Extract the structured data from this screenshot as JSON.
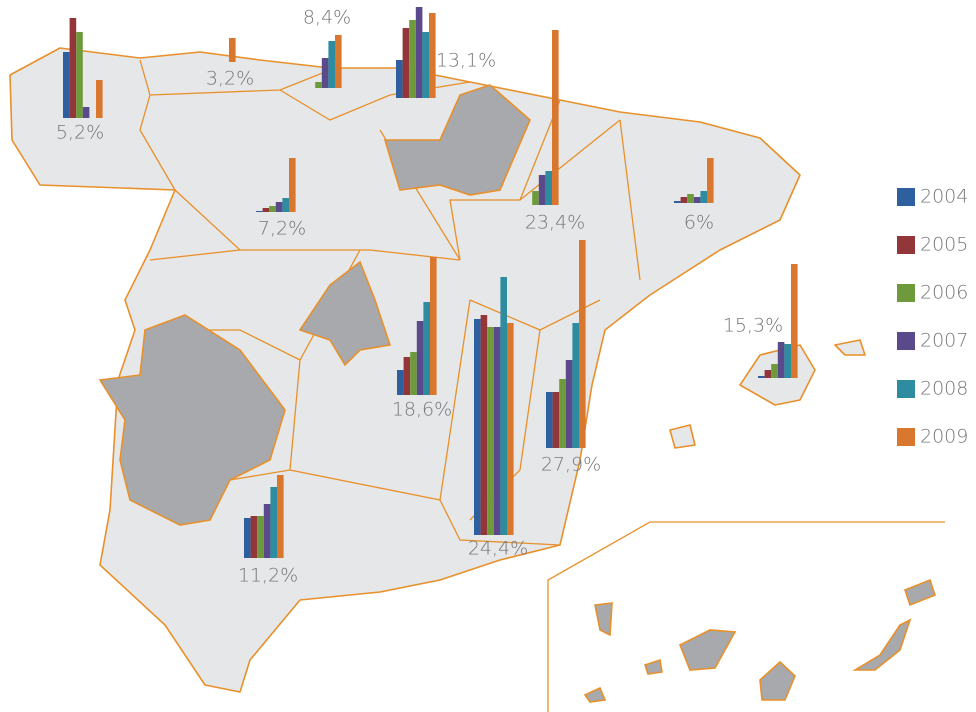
{
  "legend": {
    "series": [
      {
        "name": "2004",
        "color": "#2e5f9e"
      },
      {
        "name": "2005",
        "color": "#93363a"
      },
      {
        "name": "2006",
        "color": "#6f9a3c"
      },
      {
        "name": "2007",
        "color": "#5b4a8b"
      },
      {
        "name": "2008",
        "color": "#2e8ca0"
      },
      {
        "name": "2009",
        "color": "#d9772e"
      }
    ]
  },
  "regions": [
    {
      "label": "5,2%",
      "values": [
        66,
        100,
        86,
        11,
        0,
        38
      ]
    },
    {
      "label": "3,2%",
      "values": [
        0,
        0,
        0,
        0,
        0,
        24
      ]
    },
    {
      "label": "8,4%",
      "values": [
        0,
        0,
        6,
        30,
        47,
        53
      ]
    },
    {
      "label": "13,1%",
      "values": [
        38,
        70,
        78,
        91,
        66,
        85
      ]
    },
    {
      "label": "23,4%",
      "values": [
        0,
        0,
        14,
        30,
        34,
        175
      ]
    },
    {
      "label": "6%",
      "values": [
        2,
        6,
        9,
        6,
        12,
        45
      ]
    },
    {
      "label": "7,2%",
      "values": [
        1,
        4,
        6,
        10,
        14,
        54
      ]
    },
    {
      "label": "18,6%",
      "values": [
        25,
        38,
        43,
        74,
        93,
        138
      ]
    },
    {
      "label": "27,9%",
      "values": [
        56,
        56,
        69,
        88,
        125,
        208
      ]
    },
    {
      "label": "24,4%",
      "values": [
        216,
        220,
        208,
        208,
        258,
        212
      ]
    },
    {
      "label": "15,3%",
      "values": [
        2,
        8,
        14,
        36,
        34,
        114
      ]
    },
    {
      "label": "11,2%",
      "values": [
        40,
        42,
        42,
        54,
        71,
        83
      ]
    }
  ]
}
